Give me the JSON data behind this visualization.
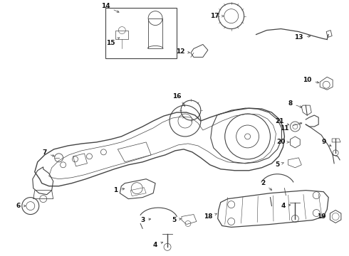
{
  "bg_color": "#ffffff",
  "line_color": "#444444",
  "text_color": "#111111",
  "fig_width": 4.9,
  "fig_height": 3.6,
  "dpi": 100
}
